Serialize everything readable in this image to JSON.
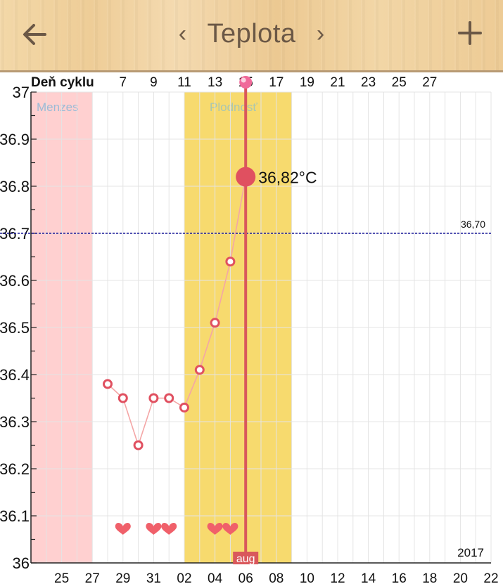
{
  "header": {
    "title": "Teplota",
    "back_icon": "arrow-left-icon",
    "prev_icon": "chevron-left-icon",
    "next_icon": "chevron-right-icon",
    "add_icon": "plus-icon",
    "prev_glyph": "‹",
    "next_glyph": "›"
  },
  "chart_data": {
    "type": "line",
    "cycle_axis_label": "Deň cyklu",
    "cycle_ticks": [
      "7",
      "9",
      "11",
      "13",
      "15",
      "17",
      "19",
      "21",
      "23",
      "25",
      "27"
    ],
    "date_ticks": [
      "25",
      "27",
      "29",
      "31",
      "02",
      "04",
      "06",
      "08",
      "10",
      "12",
      "14",
      "16",
      "18",
      "20",
      "22"
    ],
    "y_ticks": [
      "37",
      "36.9",
      "36.8",
      "36.7",
      "36.6",
      "36.5",
      "36.4",
      "36.3",
      "36.2",
      "36.1",
      "36"
    ],
    "ylim": [
      36.0,
      37.0
    ],
    "x_range_days": [
      0,
      30
    ],
    "year_label": "2017",
    "month_label": "aug",
    "series": [
      {
        "values": [
          {
            "day": 5,
            "temp": 36.38
          },
          {
            "day": 6,
            "temp": 36.35
          },
          {
            "day": 7,
            "temp": 36.25
          },
          {
            "day": 8,
            "temp": 36.35
          },
          {
            "day": 9,
            "temp": 36.35
          },
          {
            "day": 10,
            "temp": 36.33
          },
          {
            "day": 11,
            "temp": 36.41
          },
          {
            "day": 12,
            "temp": 36.51
          },
          {
            "day": 13,
            "temp": 36.64
          },
          {
            "day": 14,
            "temp": 36.82
          }
        ]
      }
    ],
    "selected": {
      "day": 14,
      "temp": 36.82,
      "label": "36,82°C"
    },
    "coverline": {
      "value": 36.7,
      "label": "36,70"
    },
    "periods": [
      {
        "name": "Menzes",
        "from_day": 0,
        "to_day": 4,
        "color": "#ffd0d0"
      },
      {
        "name": "Plodnosť",
        "from_day": 10,
        "to_day": 17,
        "color": "#f7da6e"
      }
    ],
    "intercourse_days": [
      6,
      8,
      9,
      12,
      13
    ],
    "colors": {
      "series": "#e05060",
      "line": "#f4a6a6",
      "selected_line": "#d9585c",
      "coverline": "#1a1a9a",
      "heart": "#f0606a"
    }
  }
}
